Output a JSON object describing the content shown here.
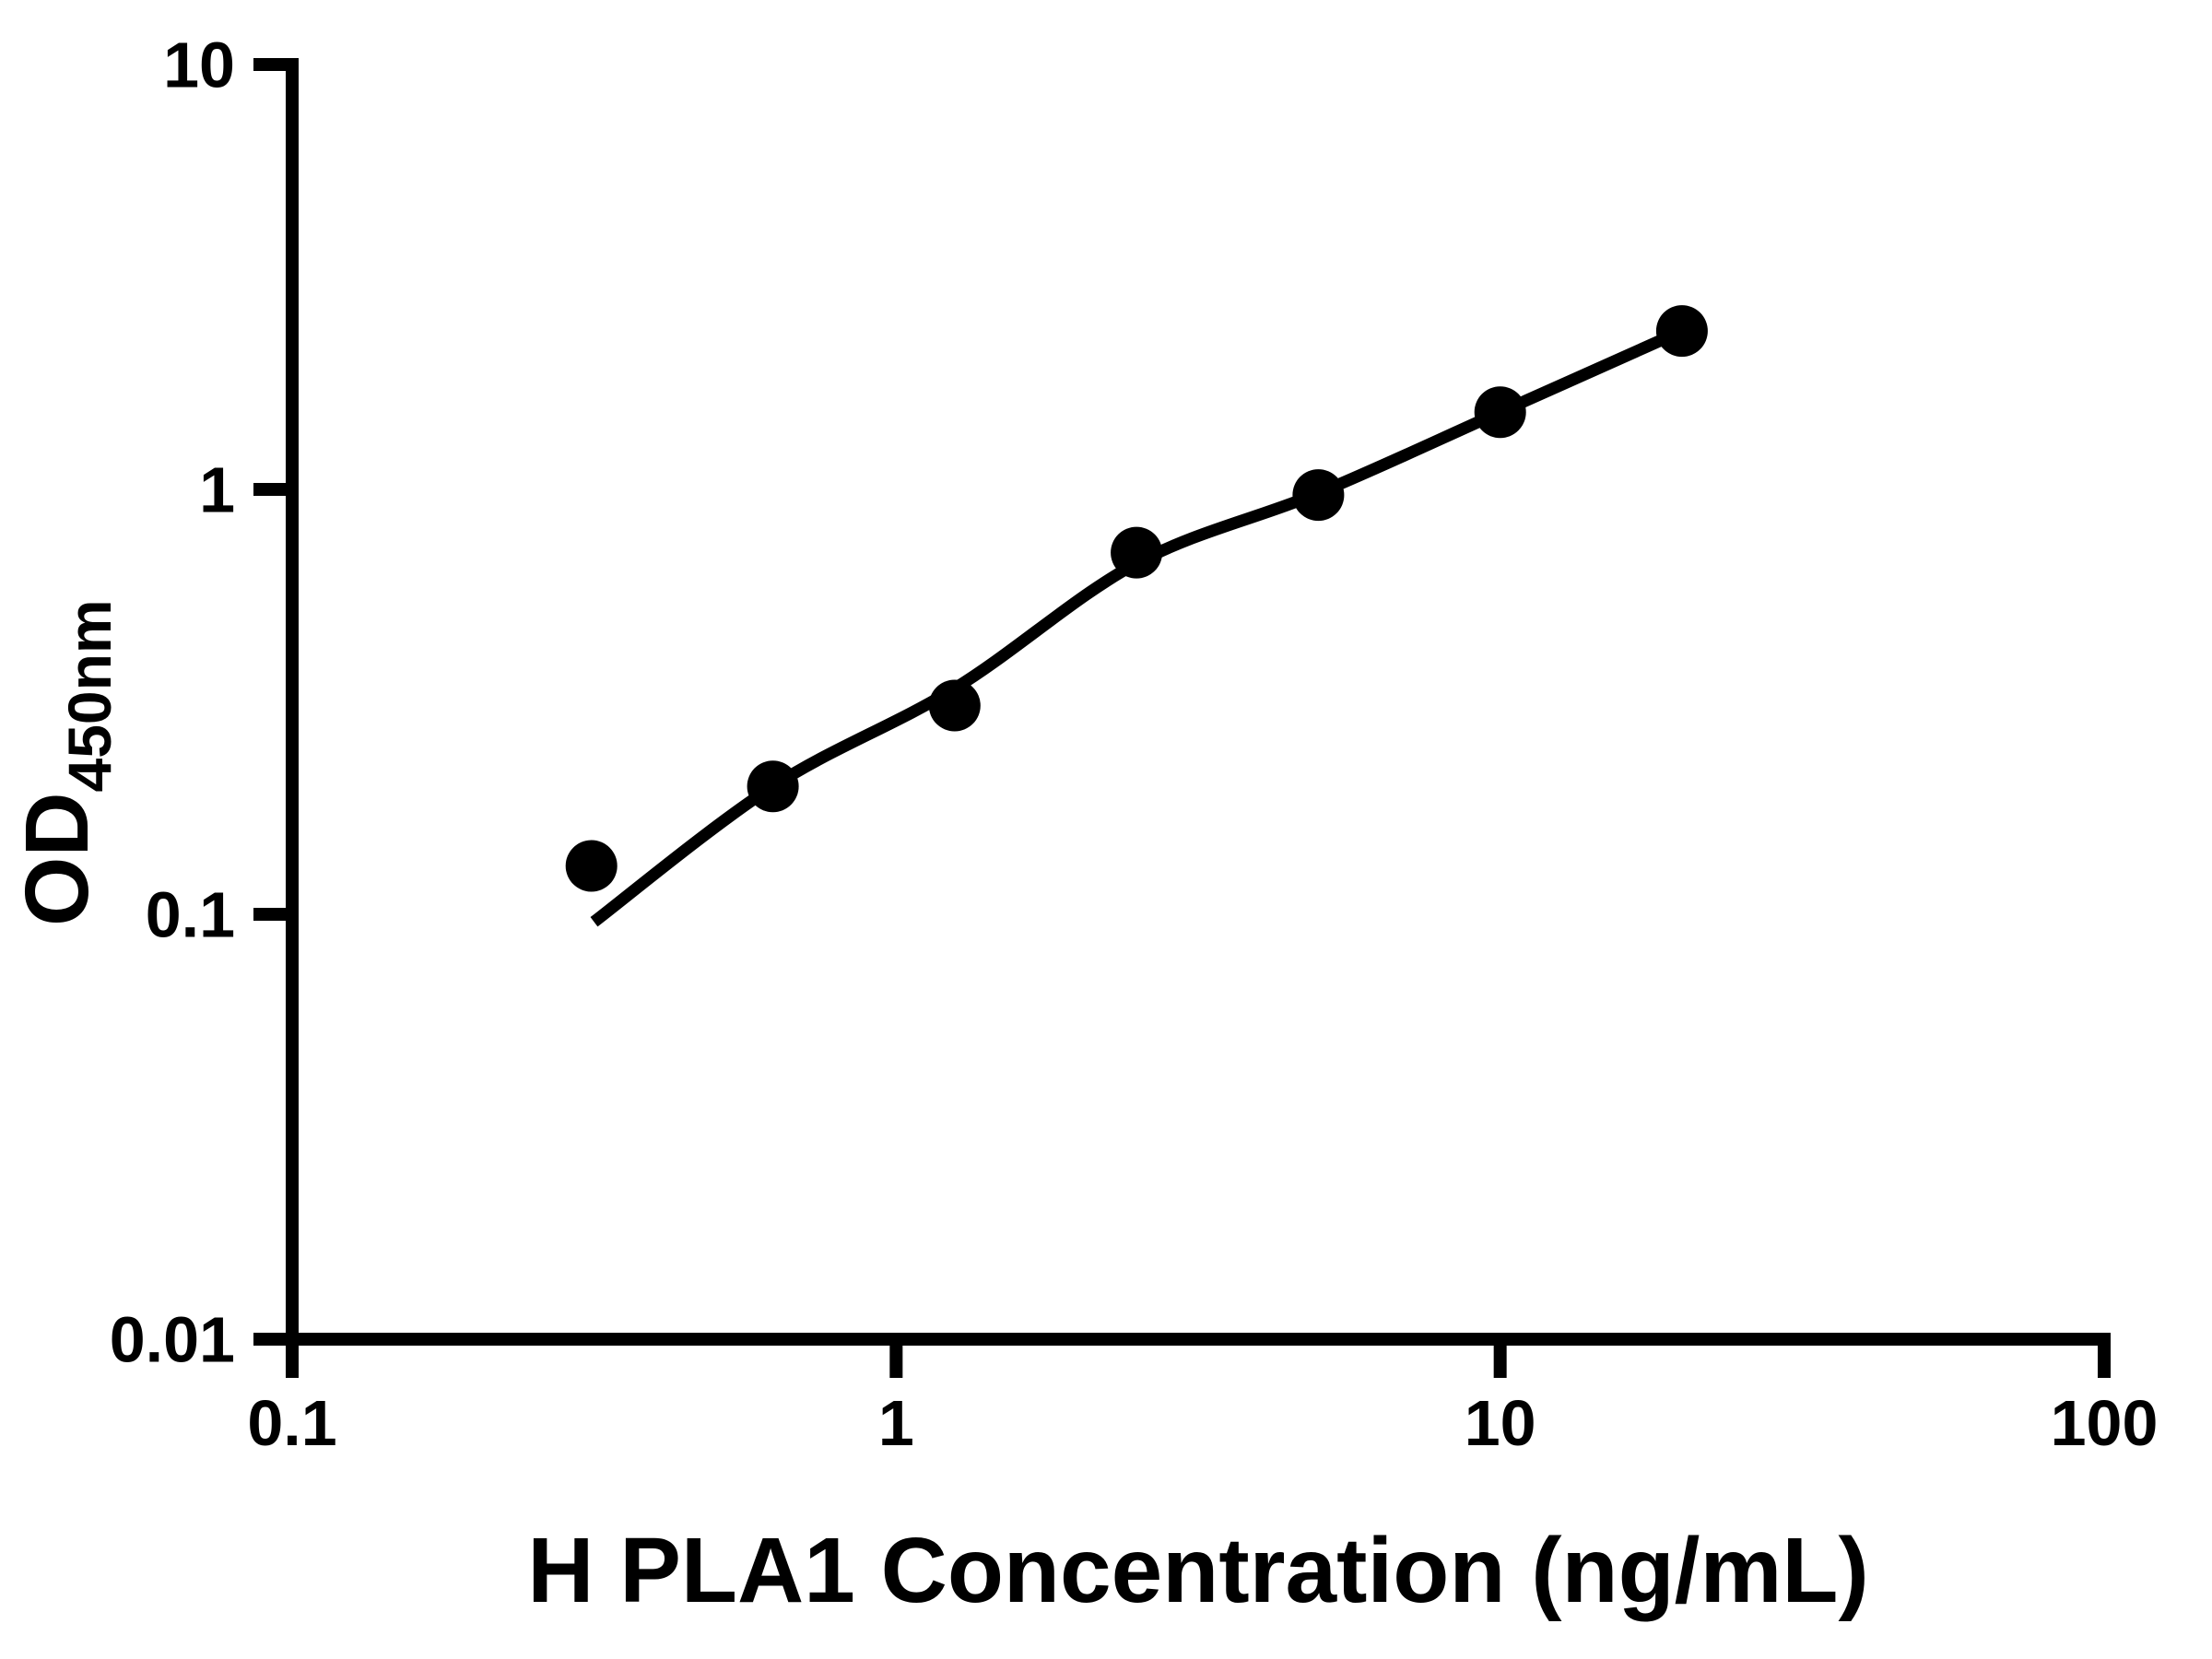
{
  "chart_data": {
    "type": "scatter",
    "title": "",
    "xlabel": "H PLA1 Concentration (ng/mL)",
    "ylabel": "OD450nm",
    "ylabel_main": "OD",
    "ylabel_sub": "450nm",
    "x_scale": "log",
    "y_scale": "log",
    "xlim": [
      0.1,
      100
    ],
    "ylim": [
      0.01,
      10
    ],
    "grid": false,
    "legend": false,
    "x_ticks": [
      {
        "value": 0.1,
        "label": "0.1"
      },
      {
        "value": 1,
        "label": "1"
      },
      {
        "value": 10,
        "label": "10"
      },
      {
        "value": 100,
        "label": "100"
      }
    ],
    "y_ticks": [
      {
        "value": 0.01,
        "label": "0.01"
      },
      {
        "value": 0.1,
        "label": "0.1"
      },
      {
        "value": 1,
        "label": "1"
      },
      {
        "value": 10,
        "label": "10"
      }
    ],
    "series": [
      {
        "name": "standard data points",
        "type": "scatter",
        "x": [
          0.313,
          0.625,
          1.25,
          2.5,
          5,
          10,
          20
        ],
        "y": [
          0.13,
          0.2,
          0.31,
          0.71,
          0.97,
          1.52,
          2.36
        ]
      },
      {
        "name": "fitted standard curve",
        "type": "line",
        "x": [
          0.316,
          0.625,
          1.25,
          2.5,
          5,
          10,
          20
        ],
        "y": [
          0.096,
          0.2,
          0.34,
          0.67,
          0.98,
          1.52,
          2.36
        ]
      }
    ],
    "colors": {
      "points": "#000000",
      "curve": "#000000",
      "axis": "#000000",
      "background": "#ffffff"
    }
  }
}
